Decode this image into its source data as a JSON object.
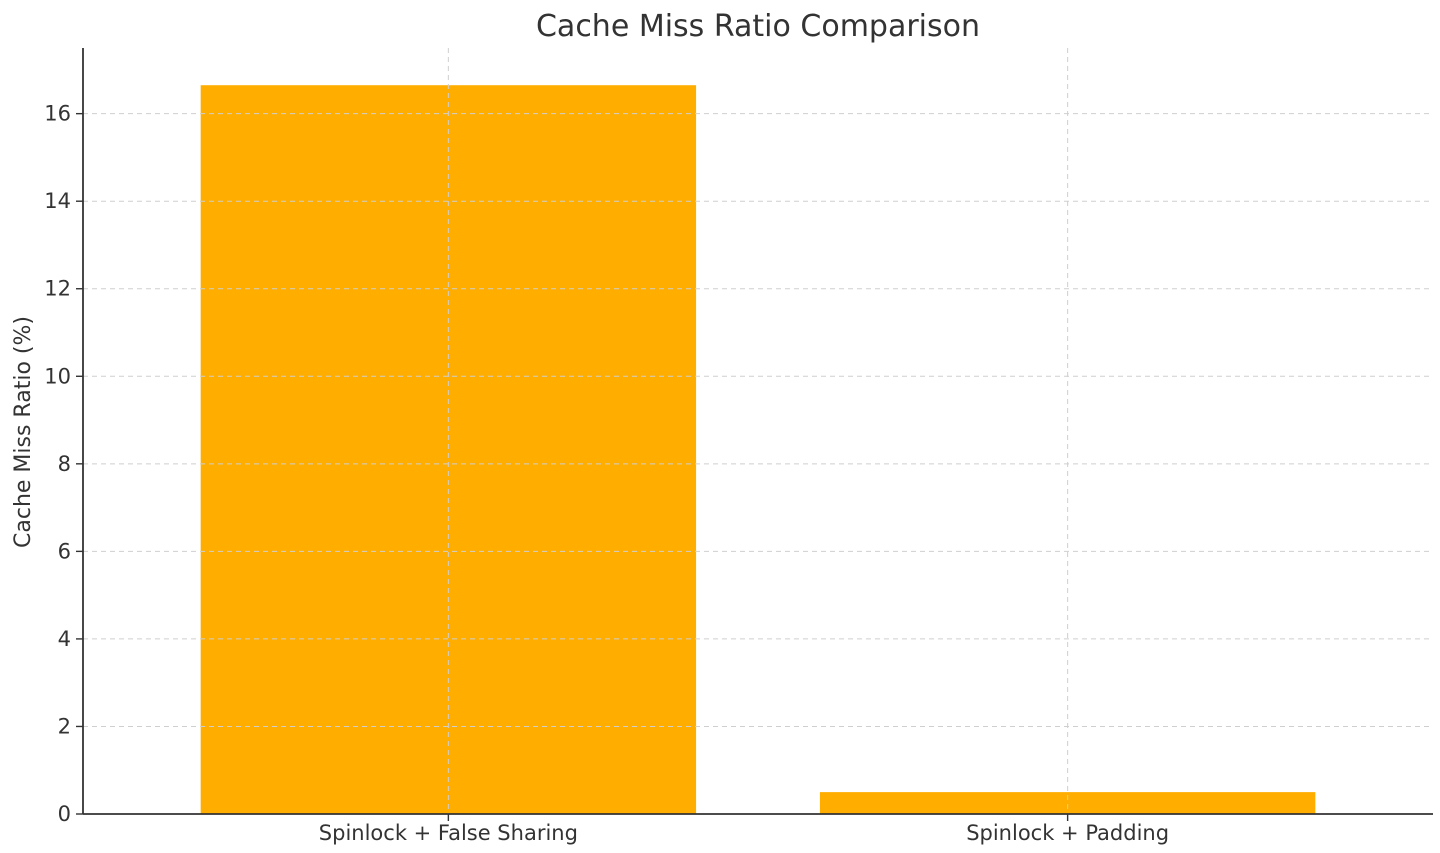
{
  "chart_data": {
    "type": "bar",
    "title": "Cache Miss Ratio Comparison",
    "xlabel": "",
    "ylabel": "Cache Miss Ratio (%)",
    "categories": [
      "Spinlock + False Sharing",
      "Spinlock + Padding"
    ],
    "values": [
      16.65,
      0.5
    ],
    "ylim": [
      0,
      17.5
    ],
    "yticks": [
      0,
      2,
      4,
      6,
      8,
      10,
      12,
      14,
      16
    ],
    "grid": true,
    "legend": "none",
    "colors": {
      "bar": "#FFAE00",
      "axis": "#333333",
      "grid": "#CFCFCF",
      "text": "#333333"
    }
  }
}
